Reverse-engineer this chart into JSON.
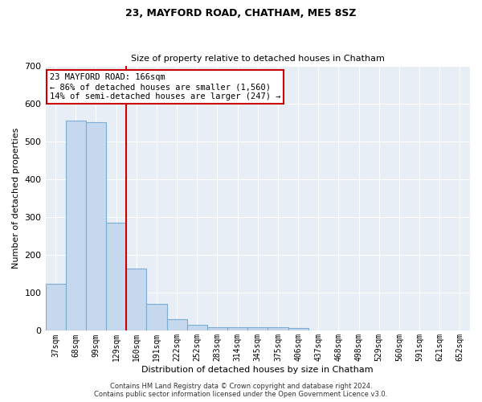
{
  "title": "23, MAYFORD ROAD, CHATHAM, ME5 8SZ",
  "subtitle": "Size of property relative to detached houses in Chatham",
  "xlabel": "Distribution of detached houses by size in Chatham",
  "ylabel": "Number of detached properties",
  "bar_color": "#c5d8ee",
  "bar_edge_color": "#7badd4",
  "background_color": "#e8eef5",
  "categories": [
    "37sqm",
    "68sqm",
    "99sqm",
    "129sqm",
    "160sqm",
    "191sqm",
    "222sqm",
    "252sqm",
    "283sqm",
    "314sqm",
    "345sqm",
    "375sqm",
    "406sqm",
    "437sqm",
    "468sqm",
    "498sqm",
    "529sqm",
    "560sqm",
    "591sqm",
    "621sqm",
    "652sqm"
  ],
  "values": [
    125,
    555,
    550,
    285,
    165,
    70,
    30,
    15,
    10,
    10,
    10,
    10,
    7,
    0,
    0,
    0,
    0,
    0,
    0,
    0,
    0
  ],
  "ylim": [
    0,
    700
  ],
  "yticks": [
    0,
    100,
    200,
    300,
    400,
    500,
    600,
    700
  ],
  "property_line_index": 4,
  "annotation_line1": "23 MAYFORD ROAD: 166sqm",
  "annotation_line2": "← 86% of detached houses are smaller (1,560)",
  "annotation_line3": "14% of semi-detached houses are larger (247) →",
  "annotation_box_color": "#ffffff",
  "annotation_box_edge_color": "#cc0000",
  "red_line_color": "#cc0000",
  "title_fontsize": 9,
  "subtitle_fontsize": 8,
  "footer_line1": "Contains HM Land Registry data © Crown copyright and database right 2024.",
  "footer_line2": "Contains public sector information licensed under the Open Government Licence v3.0."
}
